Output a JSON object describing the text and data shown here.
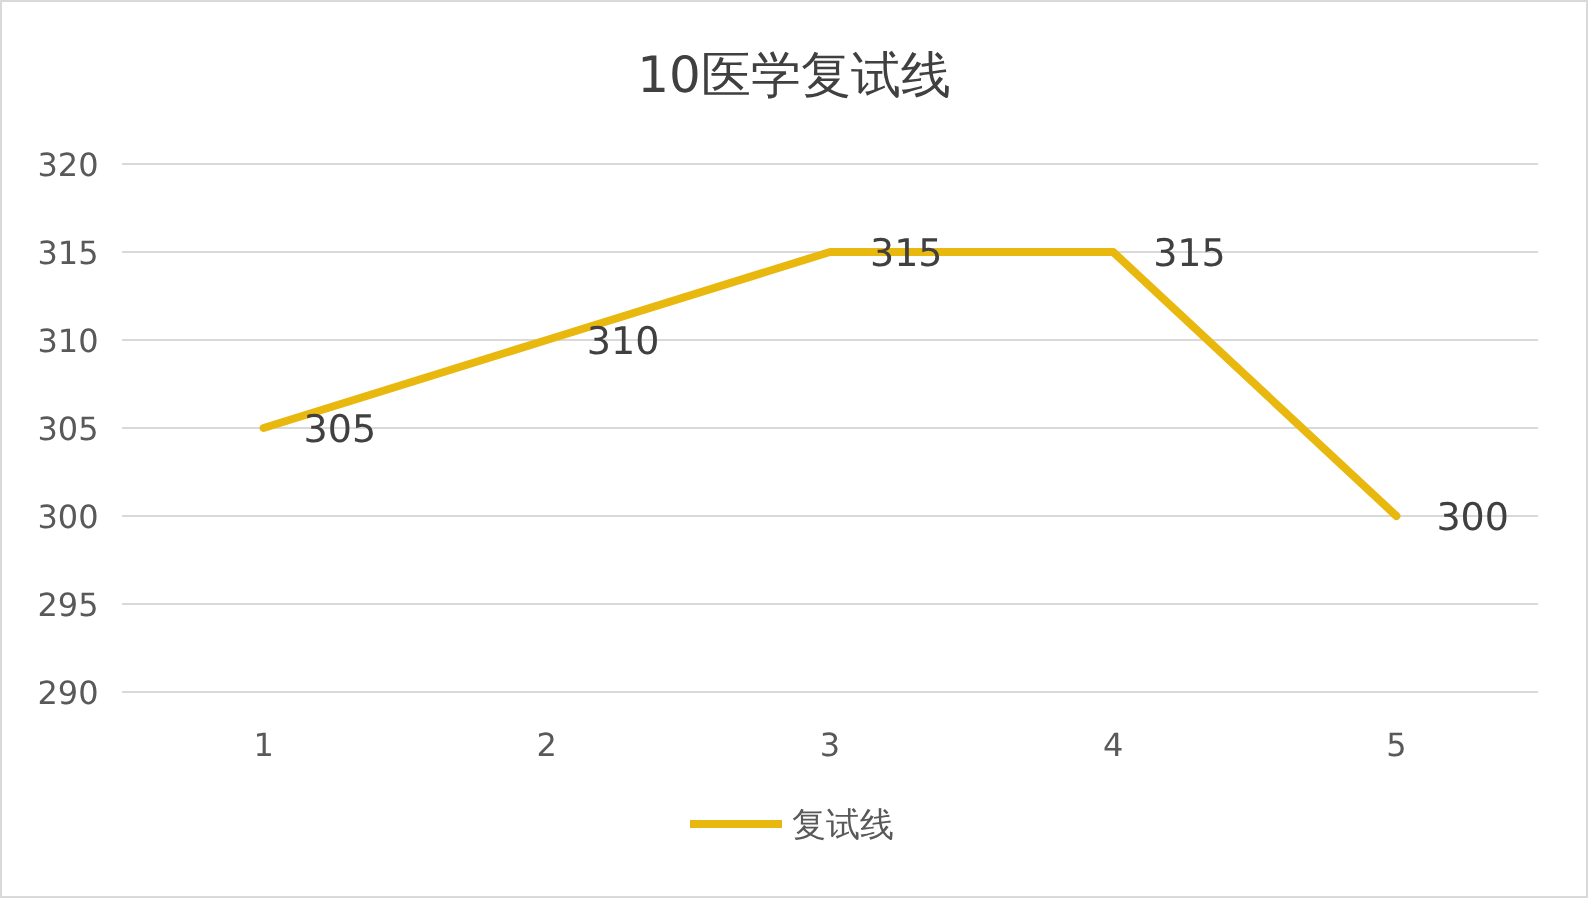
{
  "chart_data": {
    "type": "line",
    "title": "10医学复试线",
    "categories": [
      "1",
      "2",
      "3",
      "4",
      "5"
    ],
    "series": [
      {
        "name": "复试线",
        "color": "#e9b80f",
        "values": [
          305,
          310,
          315,
          315,
          300
        ]
      }
    ],
    "ylim": [
      290,
      320
    ],
    "yticks": [
      290,
      295,
      300,
      305,
      310,
      315,
      320
    ],
    "grid": "y",
    "legend": "bottom",
    "data_labels": true,
    "marker": "none",
    "line_style": "solid"
  }
}
